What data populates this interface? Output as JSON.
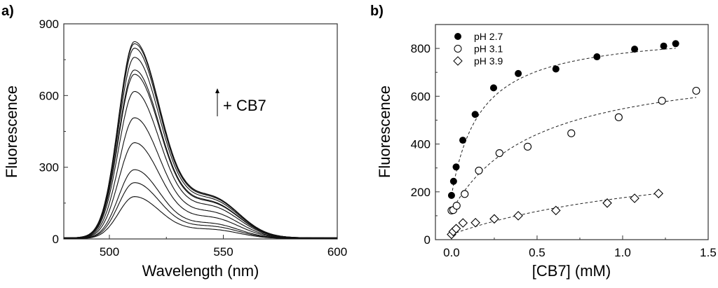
{
  "chart_data": [
    {
      "panel_label": "a)",
      "type": "line",
      "title": "",
      "xlabel": "Wavelength (nm)",
      "ylabel": "Fluorescence",
      "xlim": [
        480,
        600
      ],
      "ylim": [
        0,
        900
      ],
      "xticks": [
        500,
        550,
        600
      ],
      "yticks": [
        0,
        300,
        600,
        900
      ],
      "annotation": "+ CB7",
      "peak_wavelength": 511,
      "series_peaks": [
        820,
        815,
        800,
        765,
        715,
        700,
        630,
        520,
        415,
        300,
        245,
        185
      ],
      "grid": false
    },
    {
      "panel_label": "b)",
      "type": "scatter",
      "title": "",
      "xlabel": "[CB7] (mM)",
      "ylabel": "Fluorescence",
      "xlim": [
        -0.094,
        1.5
      ],
      "ylim": [
        0,
        900
      ],
      "xticks": [
        "0.0",
        "0.5",
        "1.0",
        "1.5"
      ],
      "xtick_values": [
        0,
        0.5,
        1.0,
        1.5
      ],
      "yticks": [
        0,
        200,
        400,
        600,
        800
      ],
      "legend_position": "top-left",
      "grid": false,
      "series": [
        {
          "name": "pH 2.7",
          "marker": "filled-circle",
          "x": [
            0,
            0.012,
            0.027,
            0.066,
            0.138,
            0.246,
            0.39,
            0.61,
            0.85,
            1.07,
            1.24,
            1.31
          ],
          "y": [
            185,
            244,
            304,
            416,
            524,
            635,
            695,
            714,
            765,
            797,
            810,
            820
          ],
          "fit": {
            "y0": 185,
            "A": 695,
            "K": 0.169
          }
        },
        {
          "name": "pH 3.1",
          "marker": "open-circle",
          "x": [
            0,
            0.01,
            0.03,
            0.077,
            0.16,
            0.28,
            0.445,
            0.7,
            0.977,
            1.23,
            1.43
          ],
          "y": [
            122,
            124,
            142,
            191,
            289,
            362,
            389,
            445,
            512,
            581,
            623
          ],
          "fit": {
            "y0": 120,
            "A": 641,
            "K": 0.5
          }
        },
        {
          "name": "pH 3.9",
          "marker": "open-diamond",
          "x": [
            0,
            0.01,
            0.027,
            0.067,
            0.14,
            0.25,
            0.39,
            0.61,
            0.91,
            1.07,
            1.21
          ],
          "y": [
            22,
            34,
            46,
            70,
            71,
            87,
            100,
            122,
            153,
            173,
            193
          ],
          "fit": {
            "y0": 22,
            "A": 377,
            "K": 1.46
          }
        }
      ]
    }
  ]
}
